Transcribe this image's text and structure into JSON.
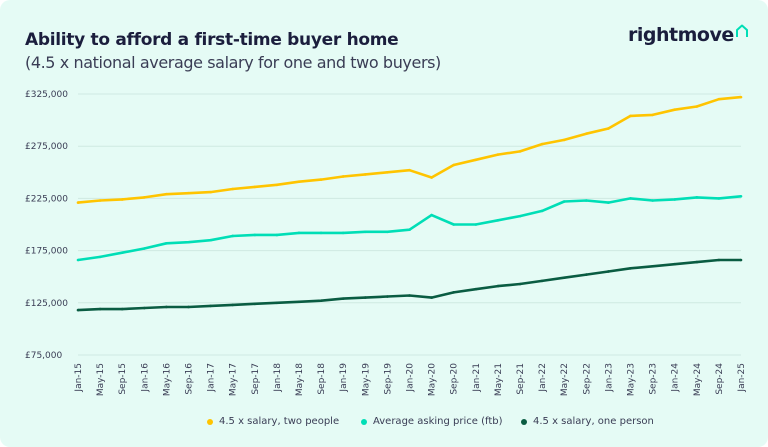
{
  "header": {
    "title": "Ability to afford a first-time buyer home",
    "subtitle": "(4.5 x national average salary for one and two buyers)"
  },
  "logo": {
    "text": "rightmove",
    "icon": "house-outline-icon",
    "icon_color": "#00deb6"
  },
  "chart_data": {
    "type": "line",
    "title": "Ability to afford a first-time buyer home",
    "subtitle": "(4.5 x national average salary for one and two buyers)",
    "x": [
      "Jan-15",
      "May-15",
      "Sep-15",
      "Jan-16",
      "May-16",
      "Sep-16",
      "Jan-17",
      "May-17",
      "Sep-17",
      "Jan-18",
      "May-18",
      "Sep-18",
      "Jan-19",
      "May-19",
      "Sep-19",
      "Jan-20",
      "May-20",
      "Sep-20",
      "Jan-21",
      "May-21",
      "Sep-21",
      "Jan-22",
      "May-22",
      "Sep-22",
      "Jan-23",
      "May-23",
      "Sep-23",
      "Jan-24",
      "May-24",
      "Sep-24",
      "Jan-25"
    ],
    "y_ticks": [
      "£75,000",
      "£125,000",
      "£175,000",
      "£225,000",
      "£275,000",
      "£325,000"
    ],
    "ylim": [
      75000,
      325000
    ],
    "grid": true,
    "legend": "bottom",
    "series": [
      {
        "name": "4.5 x salary, two people",
        "color": "#ffc400",
        "values": [
          221000,
          223000,
          224000,
          226000,
          229000,
          230000,
          231000,
          234000,
          236000,
          238000,
          241000,
          243000,
          246000,
          248000,
          250000,
          252000,
          245000,
          257000,
          262000,
          267000,
          270000,
          277000,
          281000,
          287000,
          292000,
          304000,
          305000,
          310000,
          313000,
          320000,
          322000
        ]
      },
      {
        "name": "Average asking price (ftb)",
        "color": "#00deb6",
        "values": [
          166000,
          169000,
          173000,
          177000,
          182000,
          183000,
          185000,
          189000,
          190000,
          190000,
          192000,
          192000,
          192000,
          193000,
          193000,
          195000,
          209000,
          200000,
          200000,
          204000,
          208000,
          213000,
          222000,
          223000,
          221000,
          225000,
          223000,
          224000,
          226000,
          225000,
          227000
        ]
      },
      {
        "name": "4.5 x salary, one person",
        "color": "#0a5c42",
        "values": [
          118000,
          119000,
          119000,
          120000,
          121000,
          121000,
          122000,
          123000,
          124000,
          125000,
          126000,
          127000,
          129000,
          130000,
          131000,
          132000,
          130000,
          135000,
          138000,
          141000,
          143000,
          146000,
          149000,
          152000,
          155000,
          158000,
          160000,
          162000,
          164000,
          166000,
          166000
        ]
      }
    ]
  }
}
